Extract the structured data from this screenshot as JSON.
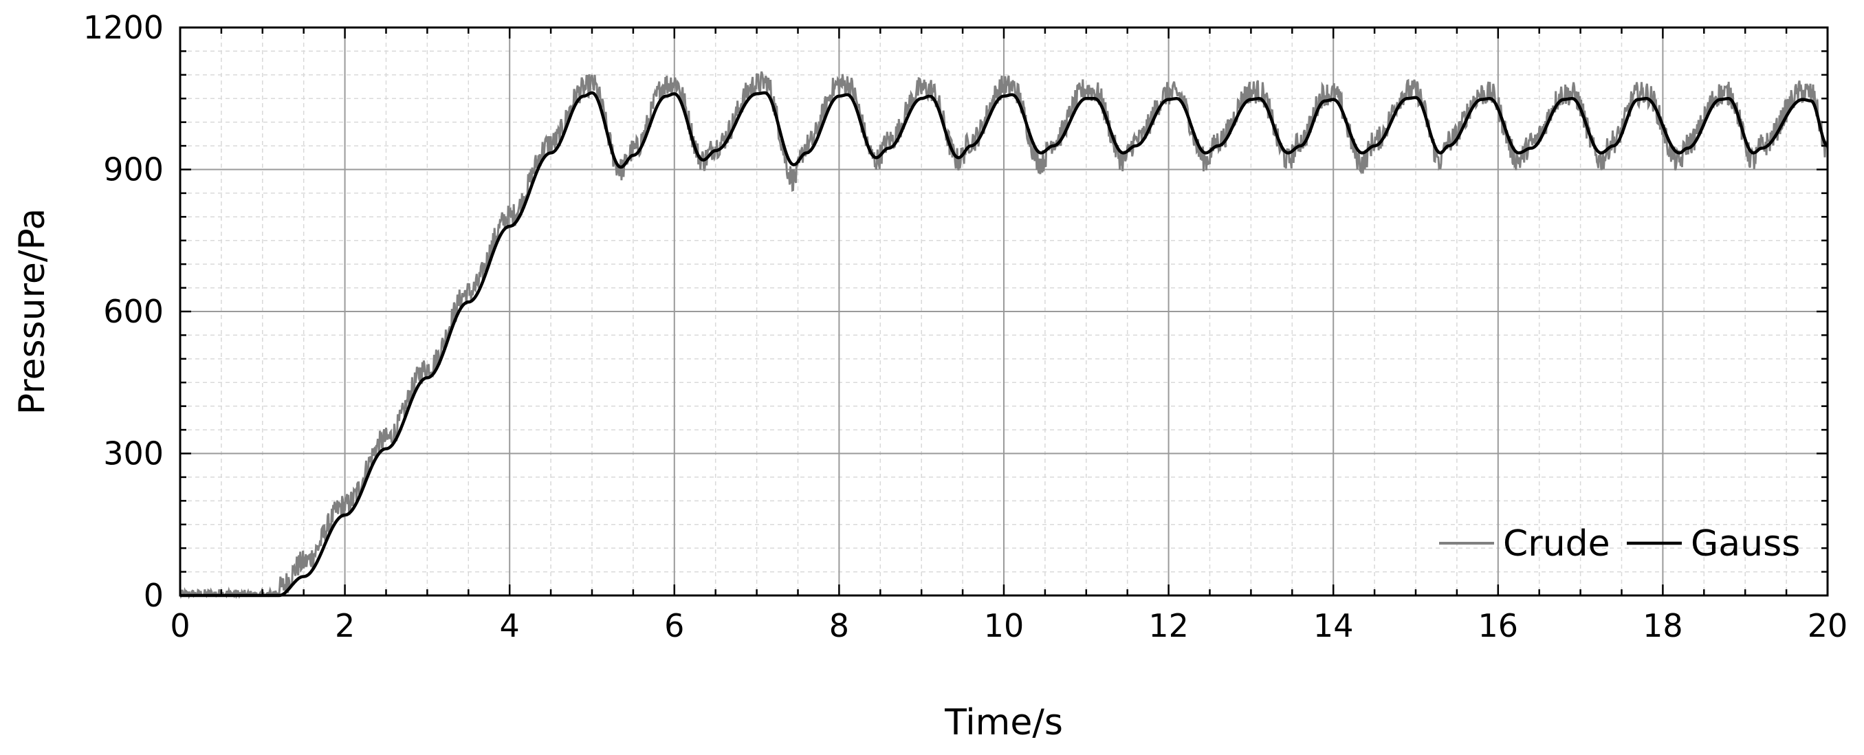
{
  "chart_data": {
    "type": "line",
    "title": "",
    "xlabel": "Time/s",
    "ylabel": "Pressure/Pa",
    "xlim": [
      0,
      20
    ],
    "ylim": [
      0,
      1200
    ],
    "x_ticks": [
      0,
      2,
      4,
      6,
      8,
      10,
      12,
      14,
      16,
      18,
      20
    ],
    "y_ticks": [
      0,
      300,
      600,
      900,
      1200
    ],
    "x_tick_labels": [
      "0",
      "2",
      "4",
      "6",
      "8",
      "10",
      "12",
      "14",
      "16",
      "18",
      "20"
    ],
    "y_tick_labels": [
      "0",
      "300",
      "600",
      "900",
      "1200"
    ],
    "grid": true,
    "minor_grid": true,
    "legend": {
      "placement": "bottom-right",
      "entries": [
        "Crude",
        "Gauss"
      ]
    },
    "series": [
      {
        "name": "Crude",
        "color": "#808080",
        "style": "noisy band around Gauss",
        "x": [
          0,
          0.5,
          1.0,
          1.2,
          1.5,
          2.0,
          2.5,
          3.0,
          3.5,
          4.0,
          4.5,
          4.9,
          5.0,
          5.35,
          5.5,
          5.9,
          6.0,
          6.35,
          6.5,
          7.0,
          7.1,
          7.45,
          7.6,
          8.0,
          8.1,
          8.45,
          8.6,
          9.0,
          9.1,
          9.45,
          9.6,
          10.0,
          10.1,
          10.45,
          10.6,
          11.0,
          11.1,
          11.45,
          11.6,
          12.0,
          12.1,
          12.45,
          12.6,
          13.0,
          13.1,
          13.45,
          13.6,
          13.9,
          14.0,
          14.35,
          14.5,
          14.9,
          15.0,
          15.3,
          15.4,
          15.8,
          15.9,
          16.25,
          16.4,
          16.8,
          16.9,
          17.25,
          17.4,
          17.7,
          17.8,
          18.2,
          18.3,
          18.7,
          18.8,
          19.1,
          19.2,
          19.7,
          19.8,
          20.0
        ],
        "y": [
          10,
          12,
          8,
          15,
          70,
          190,
          330,
          480,
          640,
          800,
          955,
          1070,
          1080,
          900,
          940,
          1080,
          1085,
          920,
          950,
          1080,
          1085,
          880,
          950,
          1080,
          1080,
          920,
          960,
          1070,
          1070,
          920,
          960,
          1075,
          1075,
          915,
          960,
          1070,
          1065,
          920,
          960,
          1060,
          1060,
          920,
          960,
          1065,
          1065,
          920,
          960,
          1060,
          1060,
          915,
          960,
          1065,
          1065,
          920,
          960,
          1060,
          1060,
          920,
          955,
          1060,
          1060,
          920,
          960,
          1060,
          1060,
          915,
          955,
          1060,
          1060,
          920,
          950,
          1065,
          1060,
          940
        ]
      },
      {
        "name": "Gauss",
        "color": "#000000",
        "style": "smooth",
        "x": [
          0,
          0.5,
          1.0,
          1.2,
          1.5,
          2.0,
          2.5,
          3.0,
          3.5,
          4.0,
          4.5,
          4.9,
          5.0,
          5.35,
          5.5,
          5.9,
          6.0,
          6.35,
          6.5,
          7.0,
          7.1,
          7.45,
          7.6,
          8.0,
          8.1,
          8.45,
          8.6,
          9.0,
          9.1,
          9.45,
          9.6,
          10.0,
          10.1,
          10.45,
          10.6,
          11.0,
          11.1,
          11.45,
          11.6,
          12.0,
          12.1,
          12.45,
          12.6,
          13.0,
          13.1,
          13.45,
          13.6,
          13.9,
          14.0,
          14.35,
          14.5,
          14.9,
          15.0,
          15.3,
          15.4,
          15.8,
          15.9,
          16.25,
          16.4,
          16.8,
          16.9,
          17.25,
          17.4,
          17.7,
          17.8,
          18.2,
          18.3,
          18.7,
          18.8,
          19.1,
          19.2,
          19.7,
          19.8,
          20.0
        ],
        "y": [
          0,
          0,
          0,
          0,
          40,
          170,
          310,
          460,
          620,
          780,
          935,
          1055,
          1062,
          905,
          930,
          1055,
          1060,
          920,
          940,
          1060,
          1062,
          910,
          935,
          1055,
          1058,
          925,
          945,
          1050,
          1055,
          925,
          950,
          1055,
          1058,
          935,
          950,
          1050,
          1050,
          935,
          950,
          1048,
          1050,
          935,
          950,
          1048,
          1050,
          935,
          950,
          1045,
          1048,
          935,
          950,
          1050,
          1052,
          935,
          950,
          1048,
          1050,
          935,
          945,
          1048,
          1050,
          935,
          950,
          1048,
          1050,
          935,
          945,
          1048,
          1050,
          935,
          945,
          1048,
          1045,
          950
        ]
      }
    ]
  }
}
